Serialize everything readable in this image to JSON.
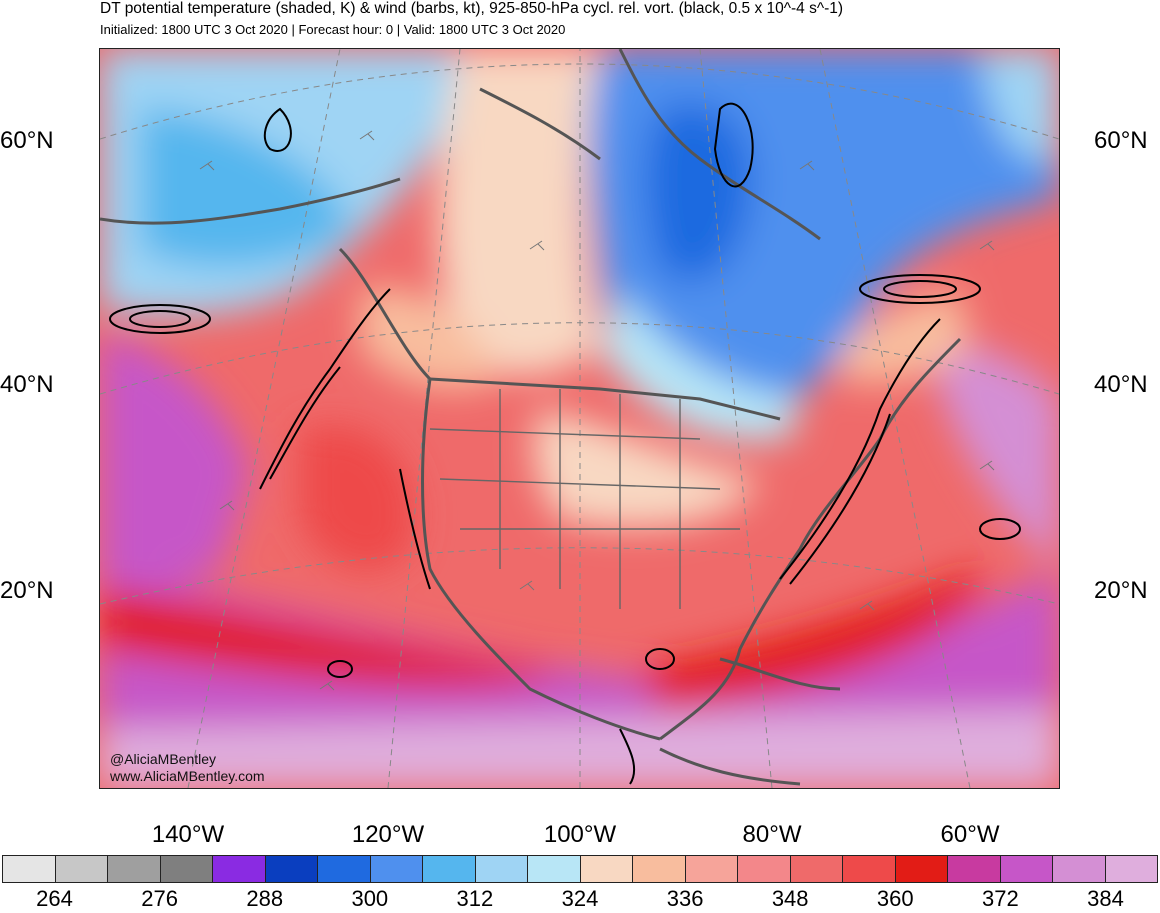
{
  "header": {
    "title": "DT potential temperature (shaded, K) & wind (barbs, kt), 925-850-hPa cycl. rel. vort. (black, 0.5 x 10^-4 s^-1)",
    "subtitle": "Initialized: 1800 UTC 3 Oct 2020 | Forecast hour: 0 | Valid: 1800 UTC 3 Oct 2020"
  },
  "axes": {
    "lat_labels": [
      "60°N",
      "40°N",
      "20°N"
    ],
    "lon_labels": [
      "140°W",
      "120°W",
      "100°W",
      "80°W",
      "60°W"
    ]
  },
  "credit": {
    "handle": "@AliciaMBentley",
    "site": "www.AliciaMBentley.com"
  },
  "colorbar": {
    "colors": [
      "#e5e5e5",
      "#c7c7c7",
      "#9f9f9f",
      "#7f7f7f",
      "#8a2be2",
      "#0a3ebf",
      "#1f6ae0",
      "#4f90ee",
      "#55b6ee",
      "#9fd4f4",
      "#b8e6f6",
      "#f8d8c2",
      "#f8bd9e",
      "#f6a49a",
      "#f3878a",
      "#ef6a6a",
      "#ee4a4a",
      "#e21c16",
      "#c83aa0",
      "#c656c8",
      "#d48fd4",
      "#dfaedd"
    ],
    "tick_labels": [
      "264",
      "276",
      "288",
      "300",
      "312",
      "324",
      "336",
      "348",
      "360",
      "372",
      "384"
    ]
  },
  "legend_colors": {
    "cold": "#3a78e8",
    "mid": "#b6e0f4",
    "warm": "#ee3b3b",
    "very_warm": "#c656c8",
    "vorticity": "#000000",
    "coastline": "#555555"
  }
}
